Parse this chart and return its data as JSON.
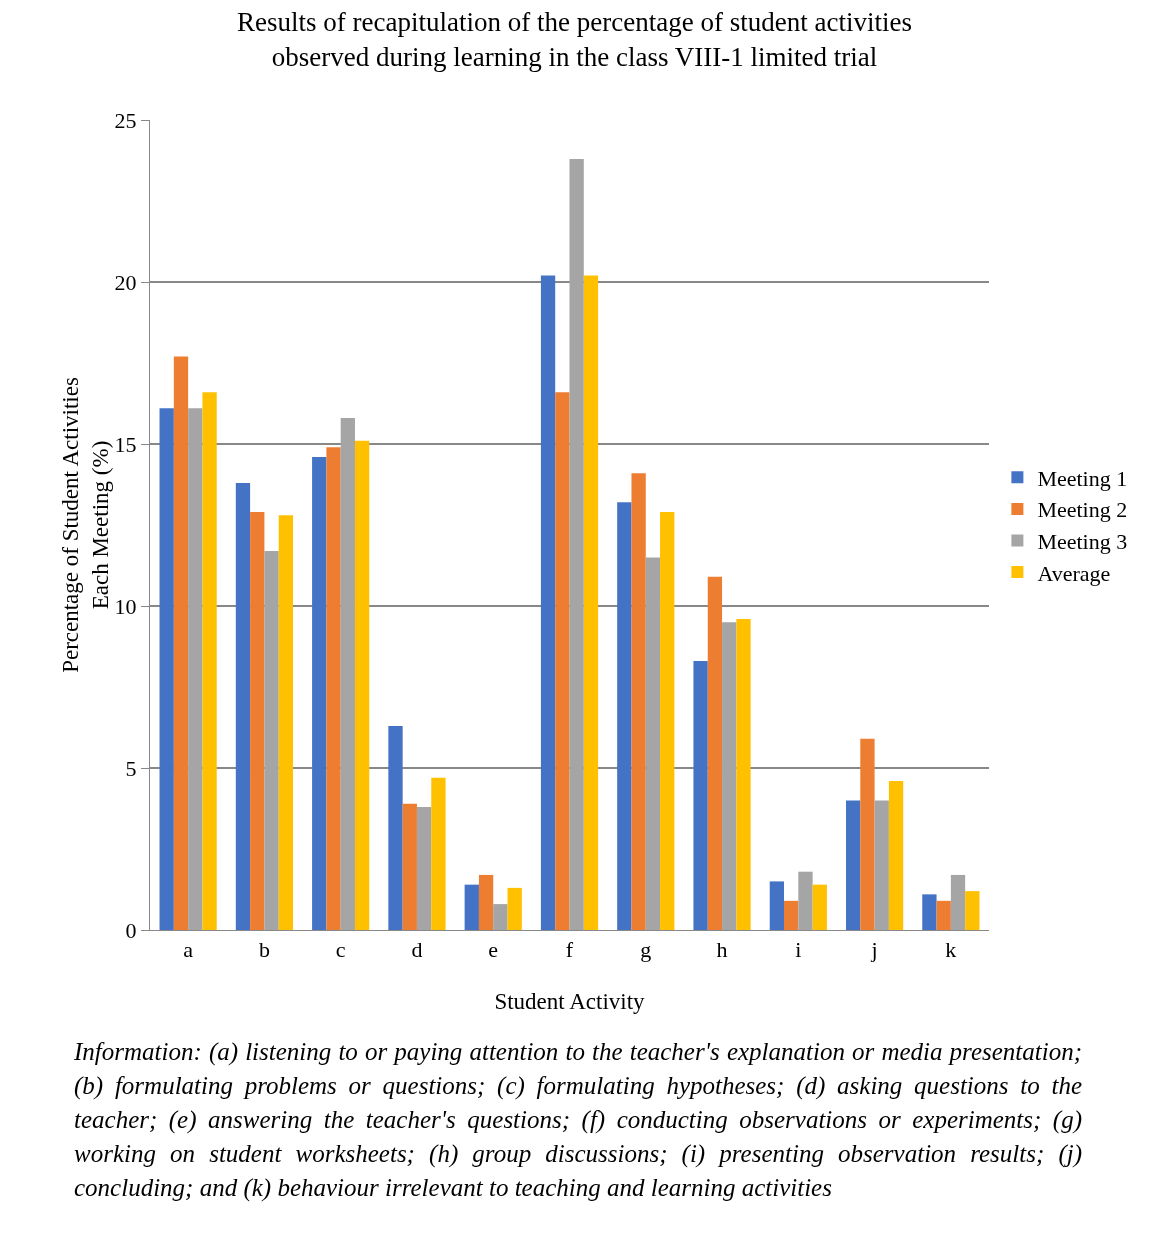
{
  "chart_data": {
    "type": "bar",
    "title": "Results of recapitulation of the percentage of student activities\nobserved during learning in the class VIII-1 limited trial",
    "xlabel": "Student Activity",
    "ylabel": "Percentage of Student Activities\nEach Meeting (%)",
    "categories": [
      "a",
      "b",
      "c",
      "d",
      "e",
      "f",
      "g",
      "h",
      "i",
      "j",
      "k"
    ],
    "series": [
      {
        "name": "Meeting 1",
        "color": "#4472c4",
        "values": [
          16.1,
          13.8,
          14.6,
          6.3,
          1.4,
          20.2,
          13.2,
          8.3,
          1.5,
          4.0,
          1.1
        ]
      },
      {
        "name": "Meeting 2",
        "color": "#ed7d31",
        "values": [
          17.7,
          12.9,
          14.9,
          3.9,
          1.7,
          16.6,
          14.1,
          10.9,
          0.9,
          5.9,
          0.9
        ]
      },
      {
        "name": "Meeting 3",
        "color": "#a5a5a5",
        "values": [
          16.1,
          11.7,
          15.8,
          3.8,
          0.8,
          23.8,
          11.5,
          9.5,
          1.8,
          4.0,
          1.7
        ]
      },
      {
        "name": "Average",
        "color": "#ffc000",
        "values": [
          16.6,
          12.8,
          15.1,
          4.7,
          1.3,
          20.2,
          12.9,
          9.6,
          1.4,
          4.6,
          1.2
        ]
      }
    ],
    "ylim": [
      0,
      25
    ],
    "yticks": [
      0,
      5,
      10,
      15,
      20,
      25
    ],
    "grid": "y",
    "legend": "right",
    "annotations": [
      "Information: (a) listening to or paying attention to the teacher's explanation or media presentation; (b) formulating problems or questions; (c) formulating hypotheses; (d) asking questions to the teacher; (e) answering the teacher's questions; (f) conducting observations or experiments; (g) working on student worksheets; (h) group discussions; (i) presenting observation results; (j) concluding; and (k) behaviour irrelevant to teaching and learning activities"
    ]
  }
}
